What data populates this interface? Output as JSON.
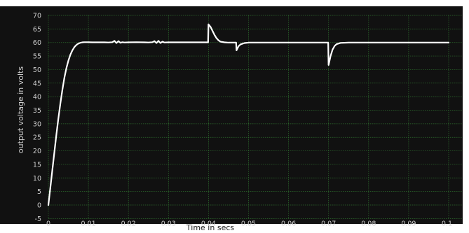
{
  "chart_data": {
    "type": "line",
    "title": "",
    "xlabel": "Time in secs",
    "ylabel": "output voltage in volts",
    "xlim": [
      0,
      0.1
    ],
    "ylim": [
      -5,
      70
    ],
    "x_ticks": [
      0,
      0.01,
      0.02,
      0.03,
      0.04,
      0.05,
      0.06,
      0.07,
      0.08,
      0.09,
      0.1
    ],
    "x_tick_labels": [
      "0",
      "0.01",
      "0.02",
      "0.03",
      "0.04",
      "0.05",
      "0.06",
      "0.07",
      "0.08",
      "0.09",
      "0.1"
    ],
    "y_ticks": [
      -5,
      0,
      5,
      10,
      15,
      20,
      25,
      30,
      35,
      40,
      45,
      50,
      55,
      60,
      65,
      70
    ],
    "y_tick_labels": [
      "-5",
      "0",
      "5",
      "10",
      "15",
      "20",
      "25",
      "30",
      "35",
      "40",
      "45",
      "50",
      "55",
      "60",
      "65",
      "70"
    ],
    "grid": true,
    "background_color": "#111111",
    "grid_color": "#2e6e2e",
    "line_color": "#ffffff",
    "tick_label_color": "#d0d0d0",
    "series": [
      {
        "x": [
          0,
          0.0005,
          0.001,
          0.0015,
          0.002,
          0.0025,
          0.003,
          0.0035,
          0.004,
          0.0045,
          0.005,
          0.0055,
          0.006,
          0.0065,
          0.007,
          0.0075,
          0.008,
          0.0085,
          0.009,
          0.0095,
          0.01,
          0.011,
          0.012,
          0.013,
          0.014,
          0.015,
          0.016,
          0.0165,
          0.017,
          0.0175,
          0.018,
          0.0185,
          0.019,
          0.02,
          0.022,
          0.024,
          0.025,
          0.026,
          0.0265,
          0.027,
          0.0275,
          0.028,
          0.0285,
          0.029,
          0.03,
          0.035,
          0.0399,
          0.04,
          0.0405,
          0.041,
          0.0415,
          0.042,
          0.0425,
          0.043,
          0.044,
          0.045,
          0.046,
          0.0469,
          0.047,
          0.0475,
          0.048,
          0.049,
          0.05,
          0.055,
          0.06,
          0.065,
          0.0699,
          0.07,
          0.0705,
          0.071,
          0.0715,
          0.072,
          0.073,
          0.075,
          0.08,
          0.09,
          0.1
        ],
        "y": [
          0,
          6.5,
          13,
          19.5,
          26,
          32,
          37.5,
          42.5,
          47,
          50.5,
          53.3,
          55.5,
          57.1,
          58.3,
          59.1,
          59.6,
          59.9,
          60.05,
          60.1,
          60.1,
          60.1,
          60.05,
          60.05,
          60.05,
          60.05,
          60.0,
          60.1,
          60.6,
          59.8,
          60.5,
          59.9,
          60.1,
          60.0,
          60.05,
          60.1,
          60.05,
          60.0,
          60.1,
          60.5,
          59.8,
          60.6,
          59.8,
          60.3,
          60.0,
          60.05,
          60.05,
          60.05,
          66.7,
          65.8,
          64.3,
          62.8,
          61.6,
          60.8,
          60.3,
          60.05,
          59.95,
          59.95,
          59.95,
          57.1,
          58.6,
          59.3,
          59.8,
          59.95,
          59.95,
          59.95,
          59.95,
          59.95,
          51.7,
          55.0,
          57.4,
          58.7,
          59.4,
          59.85,
          59.95,
          59.95,
          59.95,
          59.95
        ]
      }
    ]
  }
}
